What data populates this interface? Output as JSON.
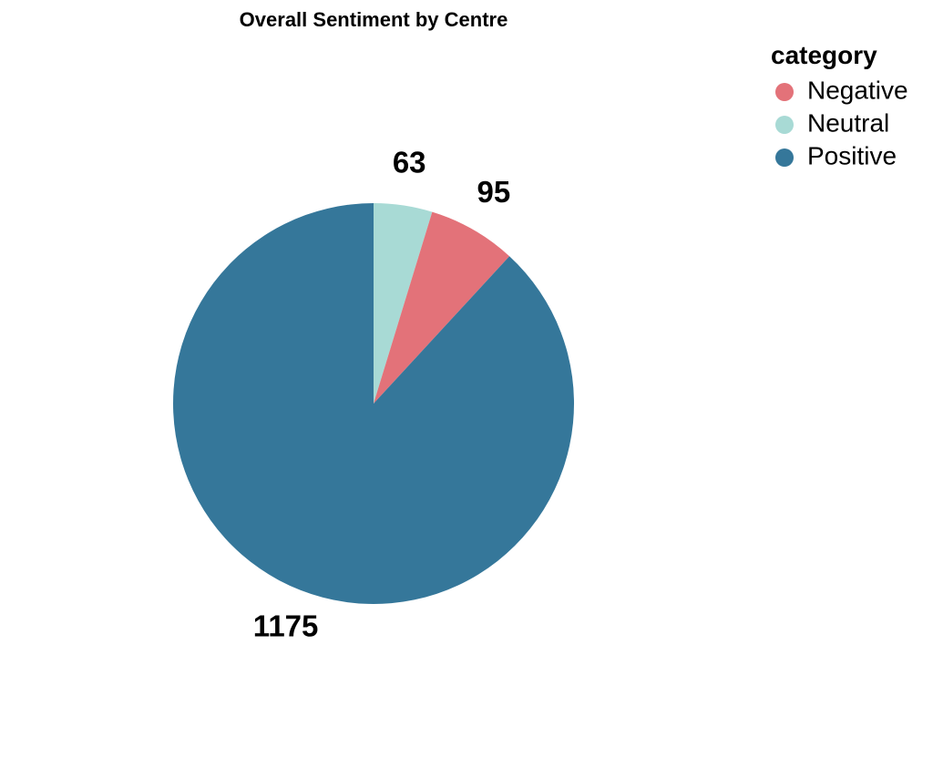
{
  "chart_data": {
    "type": "pie",
    "title": "Overall Sentiment by Centre",
    "categories": [
      "Neutral",
      "Negative",
      "Positive"
    ],
    "values": [
      63,
      95,
      1175
    ],
    "colors": [
      "#a8dad5",
      "#e37279",
      "#35779a"
    ],
    "legend": {
      "title": "category",
      "placement": "top-right",
      "entries": [
        {
          "label": "Negative",
          "color": "#e37279"
        },
        {
          "label": "Neutral",
          "color": "#a8dad5"
        },
        {
          "label": "Positive",
          "color": "#35779a"
        }
      ]
    }
  }
}
